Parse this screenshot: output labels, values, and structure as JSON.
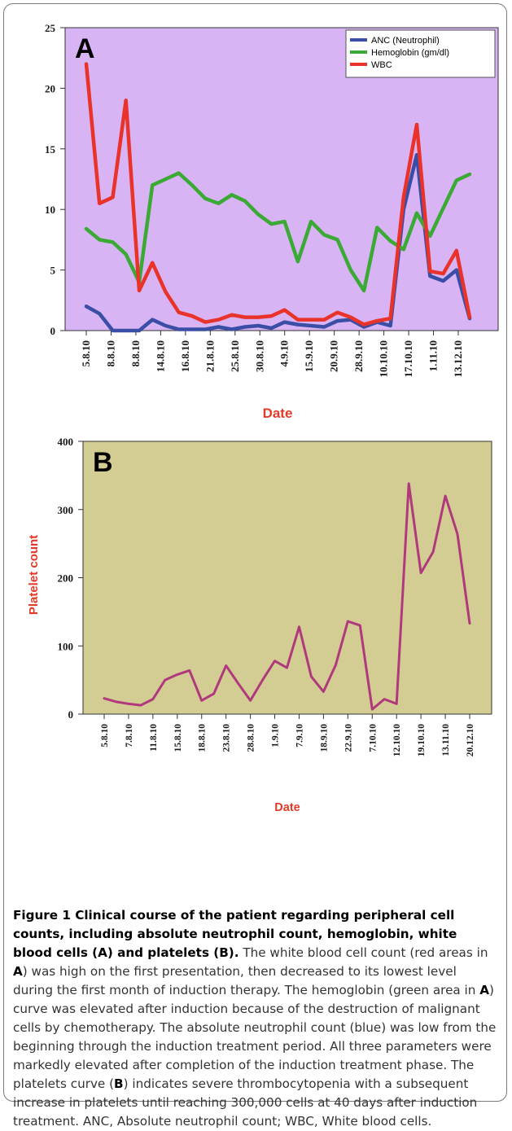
{
  "chart_data": [
    {
      "type": "line",
      "panel_label": "A",
      "xlabel": "Date",
      "ylabel": "",
      "ylim": [
        0,
        25
      ],
      "yticks": [
        0,
        5,
        10,
        15,
        20,
        25
      ],
      "x_tick_labels": [
        "5.8.10",
        "8.8.10",
        "8.8.10",
        "14.8.10",
        "16.8.10",
        "21.8.10",
        "25.8.10",
        "30.8.10",
        "4.9.10",
        "15.9.10",
        "20.9.10",
        "28.9.10",
        "10.10.10",
        "17.10.10",
        "1.11.10",
        "13.12.10"
      ],
      "legend_position": "top-right",
      "background": "#d8b4f4",
      "series": [
        {
          "name": "ANC (Neutrophil)",
          "color": "#3a4ea6",
          "values": [
            2.0,
            1.4,
            0.0,
            0.0,
            0.0,
            0.9,
            0.4,
            0.1,
            0.1,
            0.1,
            0.3,
            0.1,
            0.3,
            0.4,
            0.2,
            0.7,
            0.5,
            0.4,
            0.3,
            0.8,
            0.9,
            0.3,
            0.7,
            0.4,
            10.0,
            14.5,
            4.5,
            4.1,
            5.0,
            1.0
          ]
        },
        {
          "name": "Hemoglobin (gm/dl)",
          "color": "#3aaa35",
          "values": [
            8.4,
            7.5,
            7.3,
            6.3,
            4.0,
            12.0,
            12.5,
            13.0,
            12.0,
            10.9,
            10.5,
            11.2,
            10.7,
            9.6,
            8.8,
            9.0,
            5.7,
            9.0,
            7.9,
            7.5,
            5.0,
            3.3,
            8.5,
            7.4,
            6.7,
            9.7,
            7.8,
            10.1,
            12.4,
            12.9
          ]
        },
        {
          "name": "WBC",
          "color": "#e8322a",
          "values": [
            22.0,
            10.5,
            11.0,
            19.0,
            3.3,
            5.6,
            3.2,
            1.5,
            1.2,
            0.7,
            0.9,
            1.3,
            1.1,
            1.1,
            1.2,
            1.7,
            0.9,
            0.9,
            0.9,
            1.5,
            1.1,
            0.5,
            0.8,
            1.0,
            11.0,
            17.0,
            4.9,
            4.7,
            6.6,
            1.1
          ]
        }
      ]
    },
    {
      "type": "line",
      "panel_label": "B",
      "xlabel": "Date",
      "ylabel": "Platelet count",
      "ylim": [
        0,
        400
      ],
      "yticks": [
        0,
        100,
        200,
        300,
        400
      ],
      "x_tick_labels": [
        "5.8.10",
        "7.8.10",
        "11.8.10",
        "15.8.10",
        "18.8.10",
        "23.8.10",
        "28.8.10",
        "1.9.10",
        "7.9.10",
        "18.9.10",
        "22.9.10",
        "7.10.10",
        "12.10.10",
        "19.10.10",
        "13.11.10",
        "20.12.10"
      ],
      "background": "#d3cd93",
      "series": [
        {
          "name": "",
          "color": "#b0397d",
          "values": [
            23,
            18,
            15,
            13,
            22,
            50,
            58,
            64,
            20,
            30,
            71,
            45,
            20,
            50,
            78,
            68,
            128,
            55,
            33,
            72,
            136,
            130,
            7,
            22,
            15,
            338,
            207,
            238,
            320,
            264,
            133
          ]
        }
      ]
    }
  ],
  "caption": {
    "title": "Figure 1 Clinical course of the patient regarding peripheral cell counts, including absolute neutrophil count, hemoglobin, white blood cells (A) and platelets (B).",
    "body_1": " The white blood cell count (red areas in ",
    "body_A1": "A",
    "body_2": ") was high on the first presentation, then decreased to its lowest level during the first month of induction therapy. The hemoglobin (green area in ",
    "body_A2": "A",
    "body_3": ") curve was elevated after induction because of the destruction of malignant cells by chemotherapy. The absolute neutrophil count (blue) was low from the beginning through the induction treatment period. All three parameters were markedly elevated after completion of the induction treatment phase. The platelets curve (",
    "body_B": "B",
    "body_4": ") indicates severe thrombocytopenia with a subsequent increase in platelets until reaching 300,000 cells at 40 days after induction treatment. ANC, Absolute neutrophil count; WBC, White blood cells."
  }
}
